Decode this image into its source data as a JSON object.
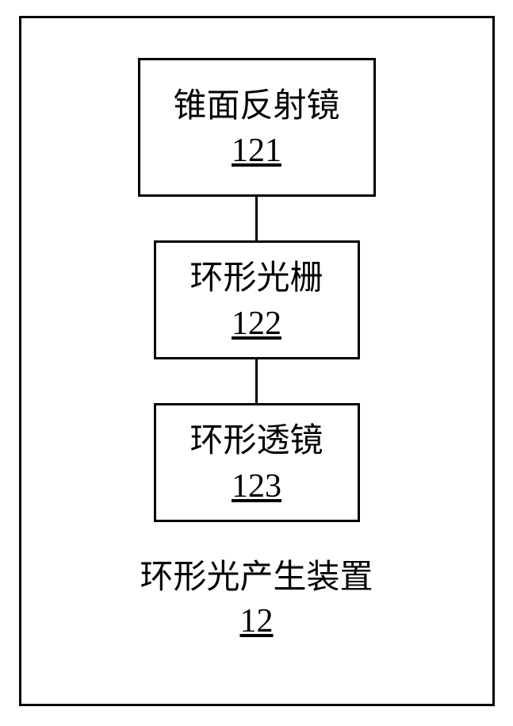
{
  "diagram": {
    "outer": {
      "title": "环形光产生装置",
      "number": "12",
      "border_color": "#000000",
      "border_width": 3,
      "background_color": "#ffffff"
    },
    "boxes": [
      {
        "title": "锥面反射镜",
        "number": "121",
        "border_color": "#000000",
        "border_width": 3
      },
      {
        "title": "环形光栅",
        "number": "122",
        "border_color": "#000000",
        "border_width": 3
      },
      {
        "title": "环形透镜",
        "number": "123",
        "border_color": "#000000",
        "border_width": 3
      }
    ],
    "connector": {
      "color": "#000000",
      "width": 3
    },
    "font": {
      "size_pt": 32,
      "family": "SimSun",
      "color": "#000000"
    }
  }
}
